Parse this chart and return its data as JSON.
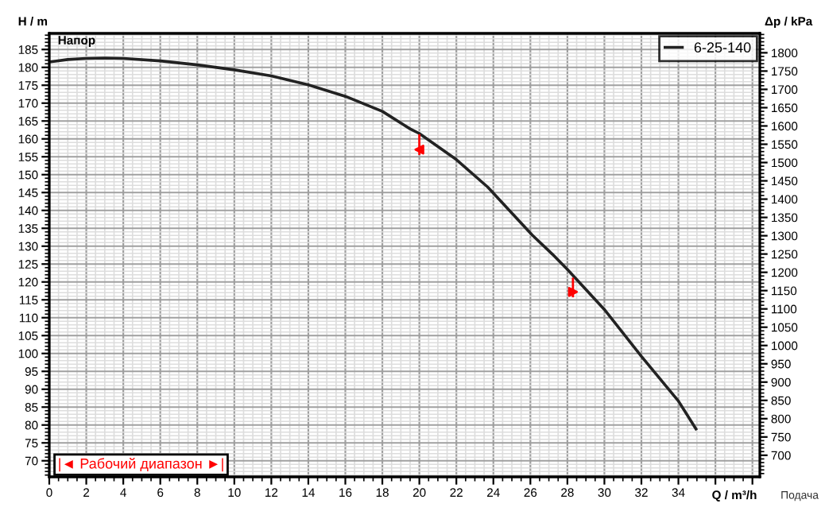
{
  "chart_data": {
    "type": "line",
    "title": "Напор",
    "xlabel": "Q / m³/h",
    "ylabel": "H / m",
    "y2label": "Δp / kPa",
    "x": [
      0,
      1,
      2,
      3,
      4,
      6,
      8,
      10,
      12,
      14,
      16,
      18,
      19.5,
      20,
      22,
      23.7,
      26.1,
      27.2,
      28,
      30,
      32,
      34,
      34.95
    ],
    "series": [
      {
        "name": "6-25-140",
        "color": "#222222",
        "values": [
          181.5,
          182.2,
          182.5,
          182.6,
          182.5,
          181.8,
          180.7,
          179.3,
          177.6,
          175.1,
          171.9,
          167.7,
          162.8,
          161.5,
          154.2,
          146.5,
          133.1,
          127.7,
          123.5,
          112.3,
          99.2,
          86.7,
          78.9
        ]
      },
      {
        "name": "|◄ Рабочий диапазон ►|",
        "type": "scatter",
        "color": "#ff0000",
        "x": [
          20,
          28.3
        ],
        "values": [
          157,
          117.2
        ],
        "marker": "triangle",
        "errors": [
          [
            155.5,
            161.3
          ],
          [
            115.7,
            121.2
          ]
        ]
      }
    ],
    "annotations": [
      "Подача"
    ],
    "xlim": [
      0,
      38.4
    ],
    "ylim": [
      65.5,
      189.5
    ],
    "y2lim": [
      641,
      1853
    ],
    "xticks": [
      0,
      2,
      4,
      6,
      8,
      10,
      12,
      14,
      16,
      18,
      20,
      22,
      24,
      26,
      28,
      30,
      32,
      34,
      {
        "value": 36,
        "label": null
      },
      {
        "value": 38,
        "label": null
      }
    ],
    "yticks": [
      70,
      75,
      80,
      85,
      90,
      95,
      100,
      105,
      110,
      115,
      120,
      125,
      130,
      135,
      140,
      145,
      150,
      155,
      160,
      165,
      170,
      175,
      180,
      185
    ],
    "y2ticks": [
      700,
      750,
      800,
      850,
      900,
      950,
      1000,
      1050,
      1100,
      1150,
      1200,
      1250,
      1300,
      1350,
      1400,
      1450,
      1500,
      1550,
      1600,
      1650,
      1700,
      1750,
      1800
    ],
    "grid": true,
    "legend": "top right",
    "marker": "none",
    "line_style": "solid"
  }
}
